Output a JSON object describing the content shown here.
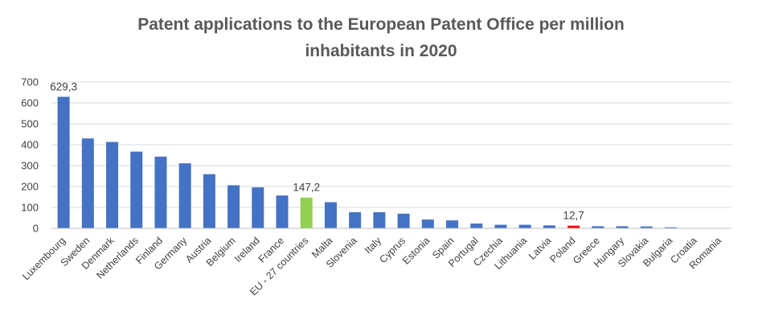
{
  "chart_data": {
    "type": "bar",
    "title_line1": "Patent applications to the European Patent Office per million",
    "title_line2": "inhabitants in 2020",
    "xlabel": "",
    "ylabel": "",
    "ylim": [
      0,
      700
    ],
    "yticks": [
      "0",
      "100",
      "200",
      "300",
      "400",
      "500",
      "600",
      "700"
    ],
    "grid": true,
    "categories": [
      "Luxembourg",
      "Sweden",
      "Denmark",
      "Netherlands",
      "Finland",
      "Germany",
      "Austria",
      "Belgium",
      "Ireland",
      "France",
      "EU - 27 countries",
      "Malta",
      "Slovenia",
      "Italy",
      "Cyprus",
      "Estonia",
      "Spain",
      "Portugal",
      "Czechia",
      "Lithuania",
      "Latvia",
      "Poland",
      "Greece",
      "Hungary",
      "Slovakia",
      "Bulgaria",
      "Croatia",
      "Romania"
    ],
    "values": [
      629.3,
      430,
      413,
      367,
      343,
      311,
      259,
      206,
      196,
      157,
      147.2,
      125,
      77,
      77,
      70,
      42,
      38,
      23,
      17,
      17,
      14,
      12.7,
      10,
      10,
      9,
      5,
      0,
      0
    ],
    "bar_colors": {
      "default": "#4472c4",
      "EU - 27 countries": "#92d050",
      "Poland": "#ff0000"
    },
    "data_labels": [
      {
        "category": "Luxembourg",
        "text": "629,3"
      },
      {
        "category": "EU - 27 countries",
        "text": "147,2"
      },
      {
        "category": "Poland",
        "text": "12,7"
      }
    ],
    "gridline_color": "#d9d9d9",
    "axis_color": "#bfbfbf"
  }
}
